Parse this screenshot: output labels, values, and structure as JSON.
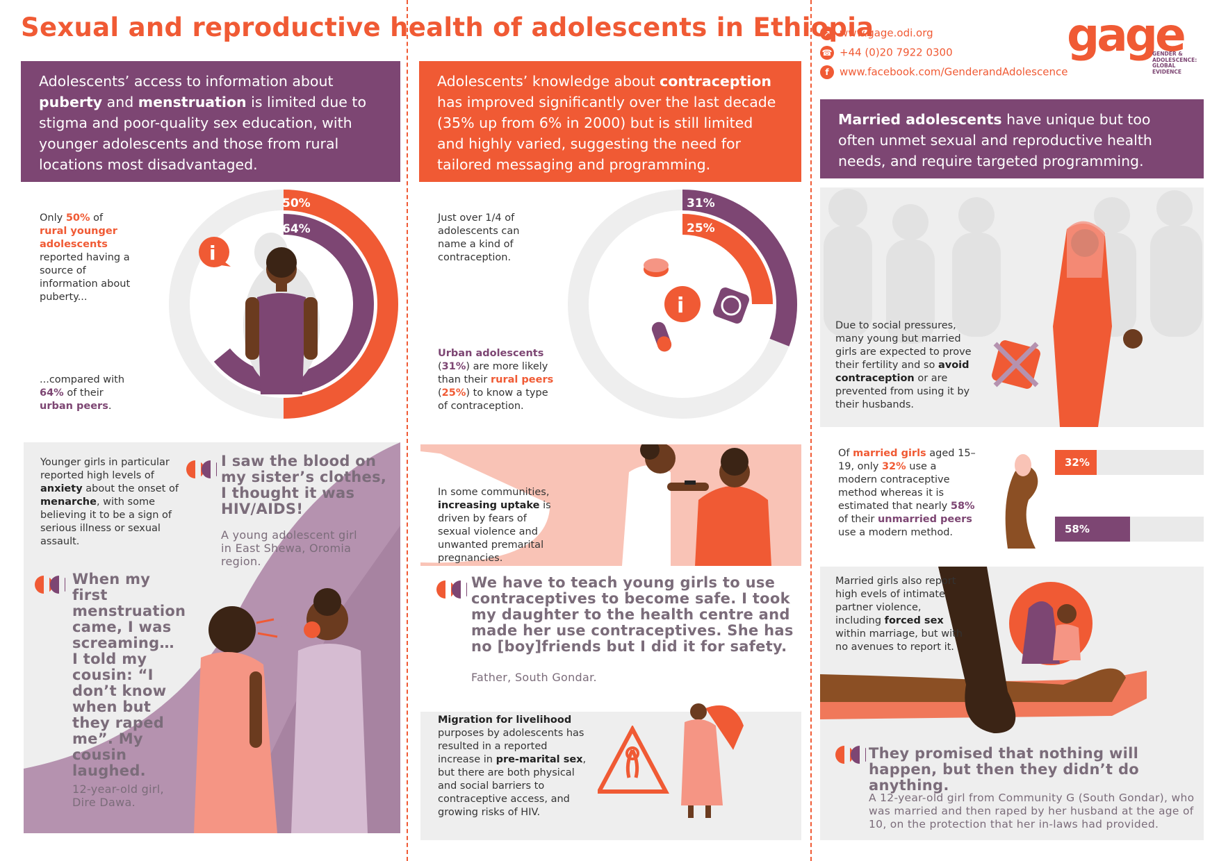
{
  "title": "Sexual and reproductive health of adolescents in Ethiopia",
  "contact": {
    "website": "www.gage.odi.org",
    "phone": "+44 (0)20 7922 0300",
    "facebook": "www.facebook.com/GenderandAdolescence"
  },
  "logo": {
    "word": "gage",
    "tagline": [
      "GENDER &",
      "ADOLESCENCE:",
      "GLOBAL",
      "EVIDENCE"
    ]
  },
  "col1": {
    "banner": [
      "Adolescents’ access to information about ",
      "puberty",
      " and ",
      "menstruation",
      " is limited due to stigma and poor-quality sex education, with younger adolescents and those from rural locations most disadvantaged."
    ],
    "stat_top": [
      "Only ",
      "50%",
      " of ",
      "rural younger adolescents",
      " reported having a source of information about puberty..."
    ],
    "stat_bottom": [
      "...compared with ",
      "64%",
      " of their ",
      "urban peers",
      "."
    ],
    "ring_outer_label": "50%",
    "ring_inner_label": "64%",
    "anxiety": [
      "Younger girls in particular reported high levels of ",
      "anxiety",
      " about the onset of ",
      "menarche",
      ", with some believing it to be a sign of serious illness or sexual assault."
    ],
    "quote1": "I saw the blood on my sister’s clothes, I thought it was HIV/AIDS!",
    "quote1_src": "A young adolescent girl in East Shewa, Oromia region.",
    "quote2": "When my first menstruation came, I was screaming… I told my cousin: “I don’t know when but they raped me”. My cousin laughed.",
    "quote2_src": "12-year-old girl, Dire Dawa."
  },
  "col2": {
    "banner": [
      "Adolescents’ knowledge about ",
      "contraception",
      " has improved significantly over the last decade (35% up from 6% in 2000) but is still limited and highly varied, suggesting the need for tailored messaging and programming."
    ],
    "stat_top": "Just over 1/4 of adolescents can name a kind of contraception.",
    "ring_outer_label": "31%",
    "ring_inner_label": "25%",
    "stat_bottom": [
      "Urban adolescents",
      " (",
      "31%",
      ") are more likely than their ",
      "rural peers",
      " (",
      "25%",
      ") to know a type of contraception."
    ],
    "uptake": [
      "In some communities, ",
      "increasing uptake",
      " is driven by fears of sexual violence and unwanted premarital pregnancies."
    ],
    "quote": "We have to teach young girls to use contraceptives to become safe. I took my daughter to the health centre and made her use contraceptives. She has no [boy]friends but I did it for safety.",
    "quote_src": "Father, South Gondar.",
    "migration": [
      "Migration for livelihood",
      " purposes by adolescents has resulted in a reported increase in ",
      "pre-marital sex",
      ", but there are both physical and social barriers to contraceptive access, and growing risks of HIV."
    ]
  },
  "col3": {
    "banner": [
      "Married adolescents",
      " have unique but too often unmet sexual and reproductive health needs, and require targeted programming."
    ],
    "pressure": [
      "Due to social pressures, many young but married girls are expected to prove their fertility and so ",
      "avoid contraception",
      " or are prevented from using it by their husbands."
    ],
    "married": [
      "Of ",
      "married girls",
      " aged 15–19, only ",
      "32%",
      " use a modern contraceptive method whereas it is estimated that nearly ",
      "58%",
      " of their ",
      "unmarried peers",
      " use a modern method."
    ],
    "violence": [
      "Married girls also report high evels of intimate partner violence, including ",
      "forced sex",
      " within marriage, but with no avenues to report it."
    ],
    "quote": "They promised that nothing will happen, but then they didn’t do anything.",
    "quote_src": "A 12-year-old girl from Community G (South Gondar), who was married and then raped by her husband at the age of 10, on the protection that her in-laws had provided."
  },
  "chart_data": [
    {
      "type": "bar",
      "title": "",
      "categories": [
        "rural younger adolescents",
        "urban peers"
      ],
      "values": [
        50,
        64
      ],
      "unit": "%"
    },
    {
      "type": "bar",
      "title": "",
      "categories": [
        "Urban adolescents",
        "rural peers"
      ],
      "values": [
        31,
        25
      ],
      "unit": "%"
    },
    {
      "type": "bar",
      "title": "",
      "categories": [
        "married girls",
        "unmarried peers"
      ],
      "values": [
        32,
        58
      ],
      "unit": "%"
    }
  ],
  "colors": {
    "orange": "#f05a34",
    "purple": "#7d4673",
    "light_grey": "#eeeeee"
  }
}
